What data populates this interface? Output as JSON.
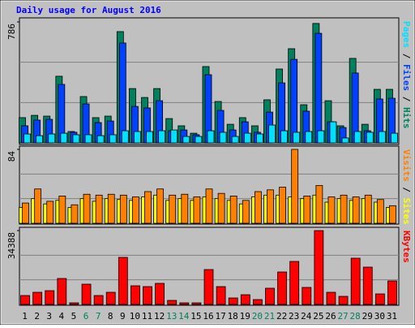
{
  "legend_separator": " / ",
  "chart_data": [
    {
      "type": "bar",
      "title": "Daily usage for August 2016",
      "ylim": [
        0,
        786
      ],
      "yticks": [
        786
      ],
      "series": [
        {
          "name": "Hits",
          "color": "#00805c",
          "values": [
            164,
            179,
            174,
            433,
            74,
            301,
            164,
            174,
            723,
            353,
            295,
            353,
            158,
            111,
            63,
            496,
            269,
            121,
            164,
            111,
            280,
            480,
            612,
            248,
            776,
            274,
            111,
            549,
            121,
            348,
            348
          ]
        },
        {
          "name": "Files",
          "color": "#0040ff",
          "values": [
            111,
            148,
            153,
            380,
            69,
            253,
            132,
            142,
            649,
            237,
            227,
            274,
            79,
            84,
            53,
            443,
            211,
            84,
            137,
            69,
            200,
            390,
            543,
            206,
            712,
            137,
            100,
            454,
            79,
            285,
            290
          ]
        },
        {
          "name": "Pages",
          "color": "#00e0ff",
          "values": [
            58,
            47,
            58,
            63,
            53,
            53,
            47,
            53,
            79,
            74,
            74,
            79,
            84,
            42,
            42,
            79,
            69,
            42,
            63,
            58,
            116,
            79,
            69,
            74,
            79,
            137,
            32,
            74,
            69,
            74,
            63
          ]
        }
      ]
    },
    {
      "type": "bar",
      "ylim": [
        0,
        84
      ],
      "yticks": [
        84
      ],
      "series": [
        {
          "name": "Sites",
          "color": "#ffff00",
          "values": [
            18,
            28,
            22,
            26,
            18,
            28,
            25,
            28,
            27,
            26,
            30,
            32,
            26,
            28,
            26,
            30,
            28,
            26,
            22,
            30,
            32,
            32,
            30,
            28,
            32,
            24,
            28,
            26,
            28,
            24,
            18
          ]
        },
        {
          "name": "Visits",
          "color": "#ff8000",
          "values": [
            23,
            39,
            25,
            31,
            21,
            33,
            32,
            33,
            32,
            30,
            36,
            39,
            32,
            33,
            30,
            39,
            34,
            31,
            26,
            36,
            38,
            41,
            84,
            31,
            43,
            30,
            32,
            30,
            32,
            27,
            20
          ]
        }
      ]
    },
    {
      "type": "bar",
      "ylim": [
        0,
        34388
      ],
      "yticks": [
        34388
      ],
      "categories": [
        "1",
        "2",
        "3",
        "4",
        "5",
        "6",
        "7",
        "8",
        "9",
        "10",
        "11",
        "12",
        "13",
        "14",
        "15",
        "16",
        "17",
        "18",
        "19",
        "20",
        "21",
        "22",
        "23",
        "24",
        "25",
        "26",
        "27",
        "28",
        "29",
        "30",
        "31"
      ],
      "category_colors": [
        "#000000",
        "#000000",
        "#000000",
        "#000000",
        "#000000",
        "#00805c",
        "#00805c",
        "#000000",
        "#000000",
        "#000000",
        "#000000",
        "#000000",
        "#00805c",
        "#00805c",
        "#000000",
        "#000000",
        "#000000",
        "#000000",
        "#000000",
        "#00805c",
        "#00805c",
        "#000000",
        "#000000",
        "#000000",
        "#000000",
        "#000000",
        "#00805c",
        "#00805c",
        "#000000",
        "#000000",
        "#000000"
      ],
      "series": [
        {
          "name": "KBytes",
          "color": "#ff0000",
          "values": [
            4157,
            5668,
            6424,
            12092,
            756,
            9447,
            4157,
            5668,
            21917,
            8691,
            8313,
            9825,
            1889,
            756,
            756,
            16249,
            8313,
            3023,
            4534,
            2267,
            7558,
            15116,
            20028,
            7935,
            34388,
            5668,
            3779,
            21539,
            17382,
            4912,
            10958
          ]
        }
      ]
    }
  ]
}
